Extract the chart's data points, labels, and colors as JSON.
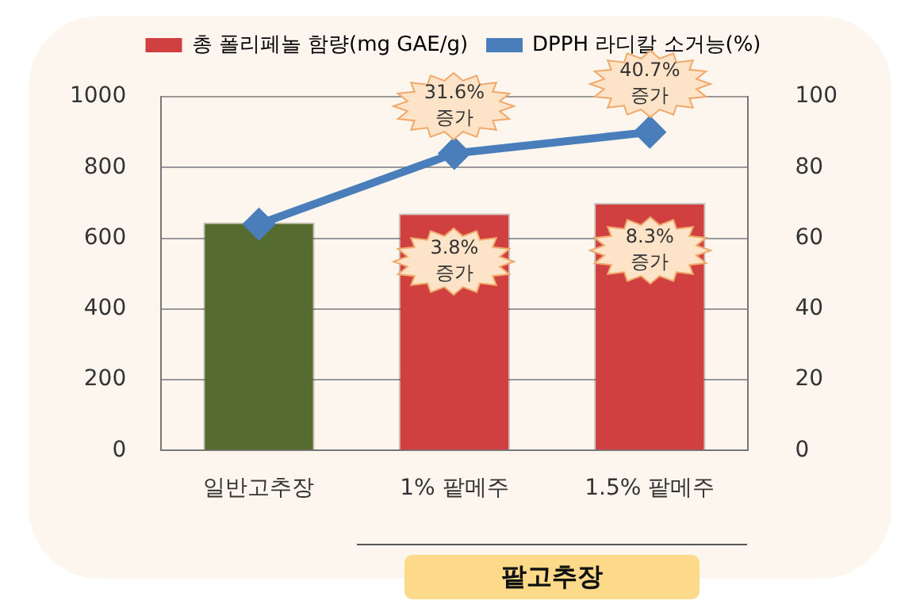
{
  "chart_data": {
    "type": "bar",
    "categories": [
      "일반고추장",
      "1% 팥메주",
      "1.5% 팥메주"
    ],
    "series": [
      {
        "name": "총 폴리페놀 함량(mg GAE/g)",
        "color": "#d04040",
        "colors": [
          "#556b2f",
          "#d04040",
          "#d04040"
        ],
        "values": [
          645,
          670,
          700
        ]
      },
      {
        "type": "line",
        "name": "DPPH 라디칼 소거능(%)",
        "color": "#4a7ebb",
        "axis": "y2",
        "values": [
          64,
          84,
          90
        ]
      }
    ],
    "ylim": [
      0,
      1000
    ],
    "yticks": [
      0,
      200,
      400,
      600,
      800,
      1000
    ],
    "y2lim": [
      0,
      100
    ],
    "y2ticks": [
      0,
      20,
      40,
      60,
      80,
      100
    ],
    "grid": "y",
    "legend": "top",
    "marker": "diamond",
    "annotations": [
      "31.6%\n증가",
      "40.7%\n증가",
      {
        "text": "3.8%\n증가",
        "x": "1% 팥메주",
        "y": 670
      },
      {
        "text": "8.3%\n증가",
        "x": "1.5% 팥메주",
        "y": 700
      },
      "팥고추장"
    ]
  }
}
